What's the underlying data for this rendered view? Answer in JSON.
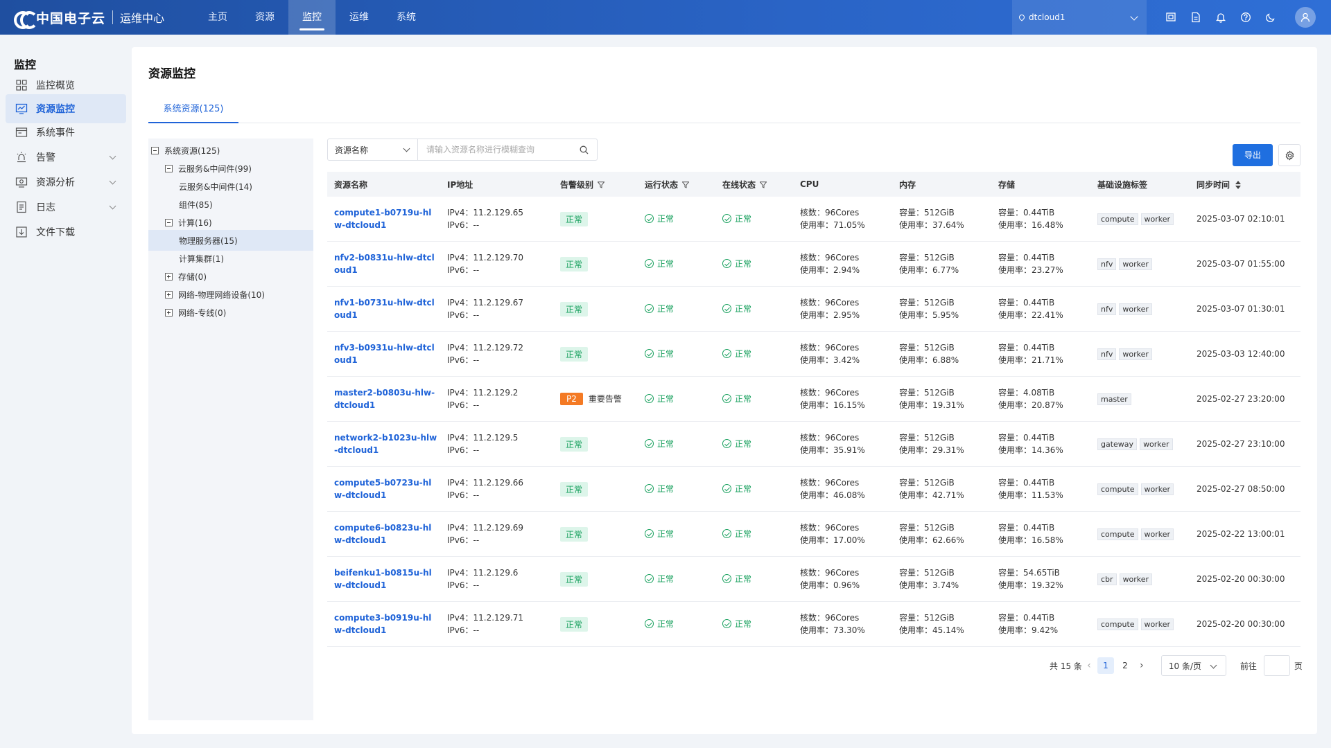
{
  "header": {
    "brand": "中国电子云",
    "sub": "运维中心",
    "nav": [
      "主页",
      "资源",
      "监控",
      "运维",
      "系统"
    ],
    "active_nav": 2,
    "tenant": "dtcloud1"
  },
  "sidebar": {
    "title": "监控",
    "items": [
      {
        "label": "监控概览",
        "icon": "grid-icon"
      },
      {
        "label": "资源监控",
        "icon": "monitor-chart-icon"
      },
      {
        "label": "系统事件",
        "icon": "event-icon"
      },
      {
        "label": "告警",
        "icon": "alarm-lamp-icon"
      },
      {
        "label": "资源分析",
        "icon": "analysis-icon"
      },
      {
        "label": "日志",
        "icon": "log-icon"
      },
      {
        "label": "文件下载",
        "icon": "download-icon"
      }
    ]
  },
  "page": {
    "title": "资源监控",
    "tab": "系统资源(125)"
  },
  "tree": [
    {
      "label": "系统资源(125)",
      "level": 0,
      "box": "minus"
    },
    {
      "label": "云服务&中间件(99)",
      "level": 1,
      "box": "minus"
    },
    {
      "label": "云服务&中间件(14)",
      "level": 2,
      "box": "none"
    },
    {
      "label": "组件(85)",
      "level": 2,
      "box": "none"
    },
    {
      "label": "计算(16)",
      "level": 1,
      "box": "minus"
    },
    {
      "label": "物理服务器(15)",
      "level": 2,
      "box": "none",
      "selected": true
    },
    {
      "label": "计算集群(1)",
      "level": 2,
      "box": "none"
    },
    {
      "label": "存储(0)",
      "level": 1,
      "box": "plus"
    },
    {
      "label": "网络-物理网络设备(10)",
      "level": 1,
      "box": "plus"
    },
    {
      "label": "网络-专线(0)",
      "level": 1,
      "box": "plus"
    }
  ],
  "search": {
    "field": "资源名称",
    "placeholder": "请输入资源名称进行模糊查询"
  },
  "toolbar": {
    "export": "导出"
  },
  "table": {
    "columns": [
      "资源名称",
      "IP地址",
      "告警级别",
      "运行状态",
      "在线状态",
      "CPU",
      "内存",
      "存储",
      "基础设施标签",
      "同步时间"
    ],
    "rows": [
      {
        "name": "compute1-b0719u-hlw-dtcloud1",
        "ipv4": "IPv4：11.2.129.65",
        "ipv6": "IPv6：--",
        "alarm": "正常",
        "alarm_type": "ok",
        "run": "正常",
        "online": "正常",
        "cpu1": "核数：96Cores",
        "cpu2": "使用率：71.05%",
        "mem1": "容量：512GiB",
        "mem2": "使用率：37.64%",
        "st1": "容量：0.44TiB",
        "st2": "使用率：16.48%",
        "tags": [
          "compute",
          "worker"
        ],
        "sync": "2025-03-07 02:10:01"
      },
      {
        "name": "nfv2-b0831u-hlw-dtcloud1",
        "ipv4": "IPv4：11.2.129.70",
        "ipv6": "IPv6：--",
        "alarm": "正常",
        "alarm_type": "ok",
        "run": "正常",
        "online": "正常",
        "cpu1": "核数：96Cores",
        "cpu2": "使用率：2.94%",
        "mem1": "容量：512GiB",
        "mem2": "使用率：6.77%",
        "st1": "容量：0.44TiB",
        "st2": "使用率：23.27%",
        "tags": [
          "nfv",
          "worker"
        ],
        "sync": "2025-03-07 01:55:00"
      },
      {
        "name": "nfv1-b0731u-hlw-dtcloud1",
        "ipv4": "IPv4：11.2.129.67",
        "ipv6": "IPv6：--",
        "alarm": "正常",
        "alarm_type": "ok",
        "run": "正常",
        "online": "正常",
        "cpu1": "核数：96Cores",
        "cpu2": "使用率：2.95%",
        "mem1": "容量：512GiB",
        "mem2": "使用率：5.95%",
        "st1": "容量：0.44TiB",
        "st2": "使用率：22.41%",
        "tags": [
          "nfv",
          "worker"
        ],
        "sync": "2025-03-07 01:30:01"
      },
      {
        "name": "nfv3-b0931u-hlw-dtcloud1",
        "ipv4": "IPv4：11.2.129.72",
        "ipv6": "IPv6：--",
        "alarm": "正常",
        "alarm_type": "ok",
        "run": "正常",
        "online": "正常",
        "cpu1": "核数：96Cores",
        "cpu2": "使用率：3.42%",
        "mem1": "容量：512GiB",
        "mem2": "使用率：6.88%",
        "st1": "容量：0.44TiB",
        "st2": "使用率：21.71%",
        "tags": [
          "nfv",
          "worker"
        ],
        "sync": "2025-03-03 12:40:00"
      },
      {
        "name": "master2-b0803u-hlw-dtcloud1",
        "ipv4": "IPv4：11.2.129.2",
        "ipv6": "IPv6：--",
        "alarm": "P2",
        "alarm_text": "重要告警",
        "alarm_type": "p2",
        "run": "正常",
        "online": "正常",
        "cpu1": "核数：96Cores",
        "cpu2": "使用率：16.15%",
        "mem1": "容量：512GiB",
        "mem2": "使用率：19.31%",
        "st1": "容量：4.08TiB",
        "st2": "使用率：20.87%",
        "tags": [
          "master"
        ],
        "sync": "2025-02-27 23:20:00"
      },
      {
        "name": "network2-b1023u-hlw-dtcloud1",
        "ipv4": "IPv4：11.2.129.5",
        "ipv6": "IPv6：--",
        "alarm": "正常",
        "alarm_type": "ok",
        "run": "正常",
        "online": "正常",
        "cpu1": "核数：96Cores",
        "cpu2": "使用率：35.91%",
        "mem1": "容量：512GiB",
        "mem2": "使用率：29.31%",
        "st1": "容量：0.44TiB",
        "st2": "使用率：14.36%",
        "tags": [
          "gateway",
          "worker"
        ],
        "sync": "2025-02-27 23:10:00"
      },
      {
        "name": "compute5-b0723u-hlw-dtcloud1",
        "ipv4": "IPv4：11.2.129.66",
        "ipv6": "IPv6：--",
        "alarm": "正常",
        "alarm_type": "ok",
        "run": "正常",
        "online": "正常",
        "cpu1": "核数：96Cores",
        "cpu2": "使用率：46.08%",
        "mem1": "容量：512GiB",
        "mem2": "使用率：42.71%",
        "st1": "容量：0.44TiB",
        "st2": "使用率：11.53%",
        "tags": [
          "compute",
          "worker"
        ],
        "sync": "2025-02-27 08:50:00"
      },
      {
        "name": "compute6-b0823u-hlw-dtcloud1",
        "ipv4": "IPv4：11.2.129.69",
        "ipv6": "IPv6：--",
        "alarm": "正常",
        "alarm_type": "ok",
        "run": "正常",
        "online": "正常",
        "cpu1": "核数：96Cores",
        "cpu2": "使用率：17.00%",
        "mem1": "容量：512GiB",
        "mem2": "使用率：62.66%",
        "st1": "容量：0.44TiB",
        "st2": "使用率：16.58%",
        "tags": [
          "compute",
          "worker"
        ],
        "sync": "2025-02-22 13:00:01"
      },
      {
        "name": "beifenku1-b0815u-hlw-dtcloud1",
        "ipv4": "IPv4：11.2.129.6",
        "ipv6": "IPv6：--",
        "alarm": "正常",
        "alarm_type": "ok",
        "run": "正常",
        "online": "正常",
        "cpu1": "核数：96Cores",
        "cpu2": "使用率：0.96%",
        "mem1": "容量：512GiB",
        "mem2": "使用率：3.74%",
        "st1": "容量：54.65TiB",
        "st2": "使用率：19.32%",
        "tags": [
          "cbr",
          "worker"
        ],
        "sync": "2025-02-20 00:30:00"
      },
      {
        "name": "compute3-b0919u-hlw-dtcloud1",
        "ipv4": "IPv4：11.2.129.71",
        "ipv6": "IPv6：--",
        "alarm": "正常",
        "alarm_type": "ok",
        "run": "正常",
        "online": "正常",
        "cpu1": "核数：96Cores",
        "cpu2": "使用率：73.30%",
        "mem1": "容量：512GiB",
        "mem2": "使用率：45.14%",
        "st1": "容量：0.44TiB",
        "st2": "使用率：9.42%",
        "tags": [
          "compute",
          "worker"
        ],
        "sync": "2025-02-20 00:30:00"
      }
    ]
  },
  "pagination": {
    "total": "共 15 条",
    "pages": [
      "1",
      "2"
    ],
    "current": "1",
    "size": "10 条/页",
    "goto": "前往",
    "page_unit": "页"
  },
  "colors": {
    "primary": "#1f63d8",
    "ok": "#17a05d",
    "p2": "#f47a24"
  }
}
